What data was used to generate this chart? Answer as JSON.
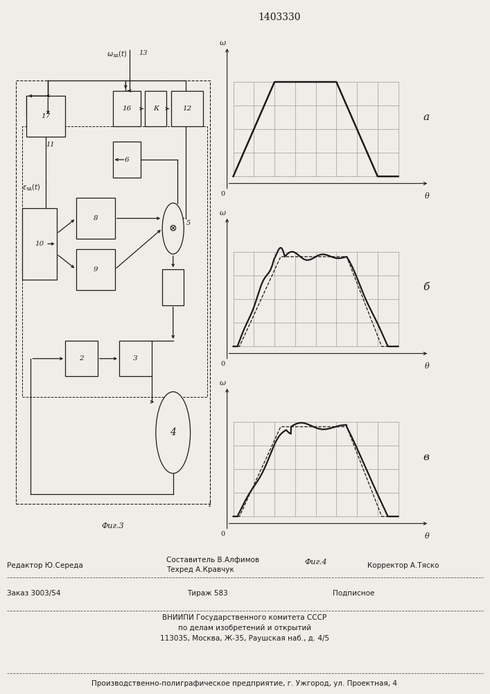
{
  "title": "1403330",
  "fig3_label": "Фиг.3",
  "fig4_label": "Фиг.4",
  "label_a": "a",
  "label_b": "б",
  "label_v": "в",
  "label_w": "ω",
  "label_theta": "θ",
  "label_0": "0",
  "footer_editor": "Редактор Ю.Середа",
  "footer_comp": "Составитель В.Алфимов",
  "footer_tech": "Техред А.Кравчук",
  "footer_corr": "Корректор А.Тяско",
  "footer_order": "Заказ 3003/54",
  "footer_tir": "Тираж 583",
  "footer_sub": "Подписное",
  "footer_vn1": "ВНИИПИ Государственного комитета СССР",
  "footer_vn2": "по делам изобретений и открытий",
  "footer_vn3": "113035, Москва, Ж-35, Раушская наб., д. 4/5",
  "footer_prod": "Производственно-полиграфическое предприятие, г. Ужгород, ул. Проектная, 4",
  "bg_color": "#f0ede8",
  "line_color": "#1a1a1a",
  "grid_color": "#999999"
}
